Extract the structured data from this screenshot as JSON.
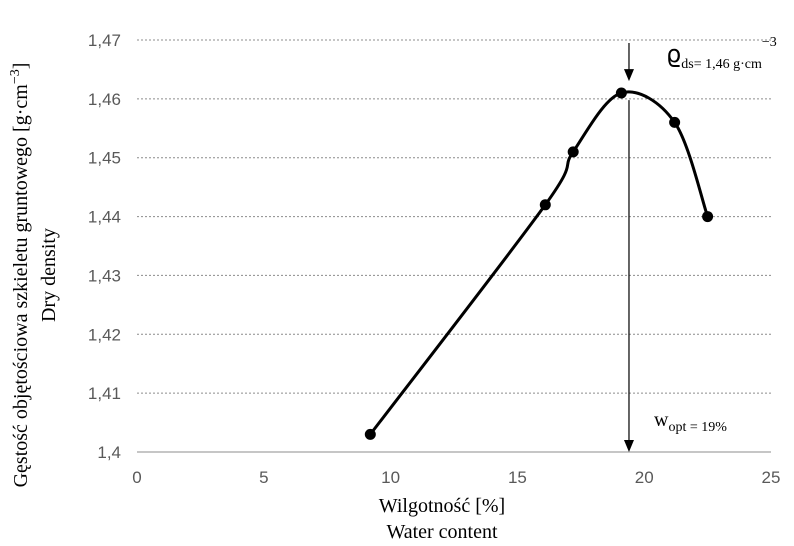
{
  "chart_data": {
    "type": "scatter",
    "title": "",
    "xlabel": [
      "Wilgotność [%]",
      "Water content"
    ],
    "ylabel": [
      "Gęstość objętościowa szkieletu gruntowego [g·cm",
      "−3",
      "]",
      "Dry density"
    ],
    "xlim": [
      0,
      25
    ],
    "ylim": [
      1.4,
      1.47
    ],
    "x_ticks": [
      "0",
      "5",
      "10",
      "15",
      "20",
      "25"
    ],
    "y_ticks": [
      "1,4",
      "1,41",
      "1,42",
      "1,43",
      "1,44",
      "1,45",
      "1,46",
      "1,47"
    ],
    "grid": "horizontal dashed",
    "series": [
      {
        "points": [
          {
            "x": 9.2,
            "y": 1.403
          },
          {
            "x": 16.1,
            "y": 1.442
          },
          {
            "x": 17.2,
            "y": 1.451
          },
          {
            "x": 19.1,
            "y": 1.461
          },
          {
            "x": 21.2,
            "y": 1.456
          },
          {
            "x": 22.5,
            "y": 1.44
          }
        ],
        "line": "smooth"
      }
    ],
    "annotations": [
      {
        "symbol": "ϱ",
        "subscript": "ds",
        "text": "= 1,46 g·cm",
        "superscript": "−3"
      },
      {
        "symbol": "w",
        "subscript": "opt",
        "text": " = 19%"
      }
    ],
    "optimum_x": 19.4
  }
}
